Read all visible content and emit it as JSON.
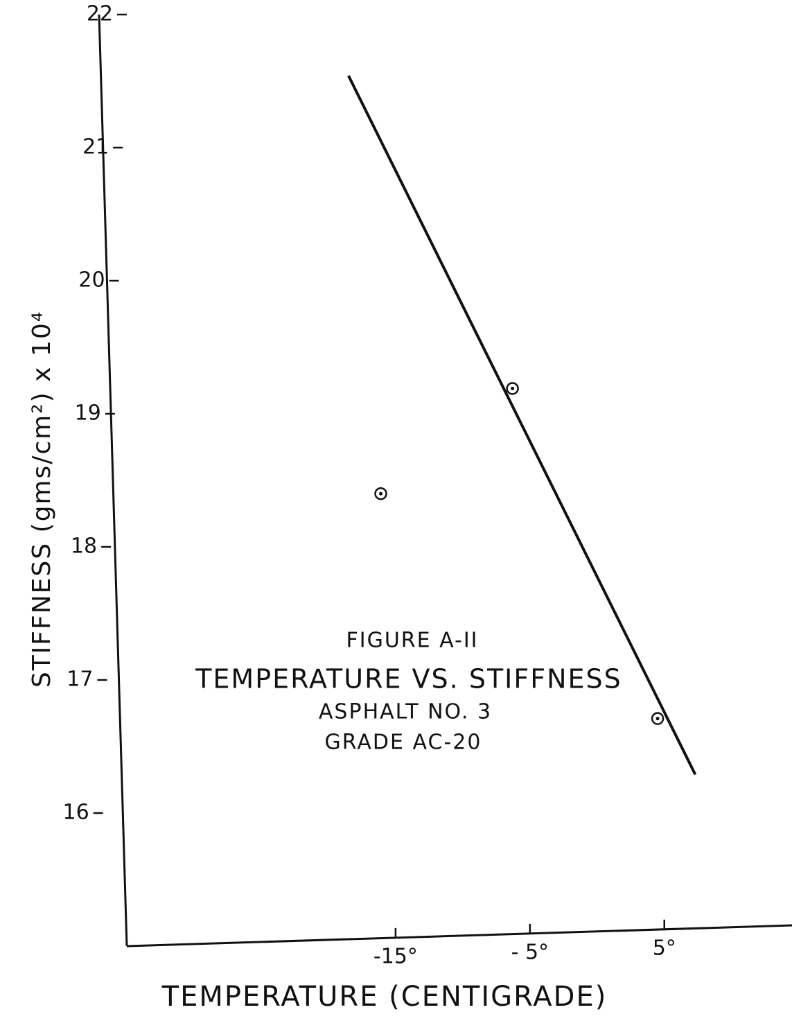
{
  "chart_data": {
    "type": "scatter",
    "title": "TEMPERATURE  VS.  STIFFNESS",
    "annotations": [
      "FIGURE A-II",
      "ASPHALT  NO. 3",
      "GRADE  AC-20"
    ],
    "xlabel": "TEMPERATURE  (CENTIGRADE)",
    "ylabel": "STIFFNESS  (gms/cm²) x 10⁴",
    "x": [
      -16.1,
      -6.3,
      4.5
    ],
    "y": [
      18.4,
      19.19,
      16.71
    ],
    "fit_line": {
      "x": [
        -18.5,
        7.3
      ],
      "y": [
        21.54,
        16.29
      ]
    },
    "color": "#111111",
    "xlim": [
      -35,
      14.5
    ],
    "ylim": [
      15,
      22
    ],
    "xticks": [
      {
        "value": -15,
        "label": "-15°"
      },
      {
        "value": -5,
        "label": "- 5°"
      },
      {
        "value": 5,
        "label": "5°"
      }
    ],
    "yticks": [
      16,
      17,
      18,
      19,
      20,
      21,
      22
    ]
  }
}
